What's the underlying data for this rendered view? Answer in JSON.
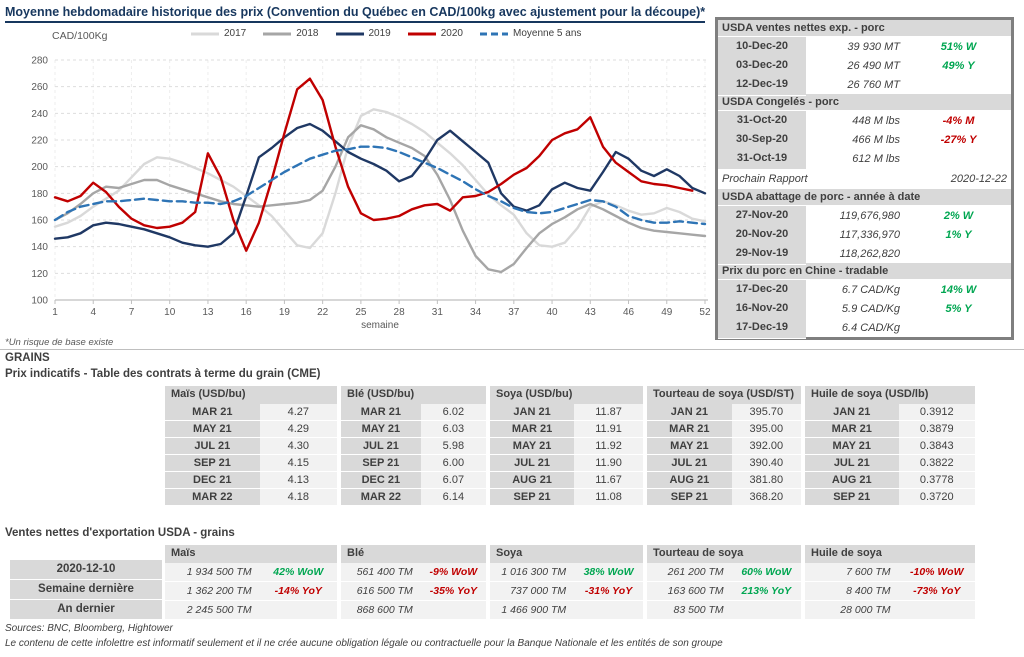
{
  "colors": {
    "title_navy": "#17375E",
    "positive": "#00A651",
    "negative": "#C00000",
    "grid": "#DDDDDD",
    "axis": "#BFBFBF",
    "header_grey": "#D9D9D9",
    "cell_grey": "#F2F2F2"
  },
  "header": {
    "title": "Moyenne hebdomadaire historique des prix (Convention du Québec en CAD/100kg avec ajustement pour la découpe)*"
  },
  "chart": {
    "y_axis_title": "CAD/100Kg",
    "x_axis_title": "semaine",
    "footnote": "*Un risque de base existe"
  },
  "chart_data": {
    "type": "line",
    "title": "Moyenne hebdomadaire historique des prix (Convention du Québec en CAD/100kg avec ajustement pour la découpe)*",
    "xlabel": "semaine",
    "ylabel": "CAD/100Kg",
    "ylim": [
      100,
      280
    ],
    "yticks": [
      280,
      260,
      240,
      220,
      200,
      180,
      160,
      140,
      120,
      100
    ],
    "xticks": [
      1,
      4,
      7,
      10,
      13,
      16,
      19,
      22,
      25,
      28,
      31,
      34,
      37,
      40,
      43,
      46,
      49,
      52
    ],
    "grid": true,
    "legend_position": "top",
    "x": [
      1,
      2,
      3,
      4,
      5,
      6,
      7,
      8,
      9,
      10,
      11,
      12,
      13,
      14,
      15,
      16,
      17,
      18,
      19,
      20,
      21,
      22,
      23,
      24,
      25,
      26,
      27,
      28,
      29,
      30,
      31,
      32,
      33,
      34,
      35,
      36,
      37,
      38,
      39,
      40,
      41,
      42,
      43,
      44,
      45,
      46,
      47,
      48,
      49,
      50,
      51,
      52
    ],
    "series": [
      {
        "name": "2017",
        "color": "#D9D9D9",
        "dashed": false,
        "values": [
          155,
          158,
          163,
          170,
          176,
          182,
          192,
          202,
          207,
          206,
          203,
          199,
          195,
          190,
          185,
          178,
          171,
          163,
          152,
          141,
          139,
          150,
          180,
          215,
          238,
          243,
          241,
          237,
          232,
          226,
          218,
          210,
          201,
          190,
          179,
          171,
          164,
          150,
          141,
          140,
          143,
          154,
          170,
          174,
          171,
          167,
          164,
          165,
          169,
          166,
          161,
          159
        ]
      },
      {
        "name": "2018",
        "color": "#A6A6A6",
        "dashed": false,
        "values": [
          160,
          165,
          172,
          180,
          185,
          184,
          187,
          190,
          190,
          186,
          183,
          180,
          177,
          174,
          172,
          171,
          170,
          171,
          172,
          173,
          175,
          182,
          200,
          222,
          231,
          228,
          222,
          218,
          214,
          208,
          194,
          175,
          152,
          133,
          123,
          121,
          127,
          139,
          150,
          157,
          162,
          168,
          172,
          168,
          163,
          158,
          154,
          152,
          151,
          150,
          149,
          148
        ]
      },
      {
        "name": "2019",
        "color": "#1F3864",
        "dashed": false,
        "values": [
          146,
          147,
          150,
          156,
          158,
          157,
          155,
          153,
          150,
          147,
          143,
          141,
          140,
          142,
          150,
          178,
          207,
          214,
          222,
          229,
          232,
          227,
          219,
          211,
          206,
          202,
          197,
          189,
          193,
          205,
          220,
          227,
          219,
          211,
          203,
          180,
          170,
          167,
          171,
          183,
          188,
          184,
          182,
          196,
          211,
          206,
          197,
          193,
          198,
          193,
          184,
          180
        ]
      },
      {
        "name": "2020",
        "color": "#C00000",
        "dashed": false,
        "values": [
          177,
          174,
          178,
          188,
          181,
          170,
          161,
          156,
          154,
          155,
          158,
          166,
          210,
          192,
          160,
          137,
          158,
          190,
          225,
          258,
          266,
          250,
          215,
          185,
          165,
          160,
          161,
          163,
          168,
          171,
          172,
          167,
          177,
          178,
          181,
          187,
          194,
          199,
          208,
          220,
          225,
          228,
          237,
          215,
          203,
          196,
          189,
          187,
          186,
          184,
          182
        ]
      },
      {
        "name": "Moyenne 5 ans",
        "color": "#2E74B5",
        "dashed": true,
        "values": [
          160,
          166,
          170,
          172,
          174,
          174,
          175,
          176,
          175,
          174,
          174,
          173,
          173,
          172,
          174,
          178,
          184,
          190,
          196,
          201,
          206,
          209,
          212,
          213,
          215,
          215,
          214,
          211,
          207,
          203,
          199,
          194,
          189,
          183,
          178,
          174,
          169,
          166,
          165,
          166,
          169,
          172,
          175,
          174,
          170,
          163,
          160,
          158,
          158,
          159,
          158,
          157
        ]
      }
    ]
  },
  "pork_panel": {
    "sections": [
      {
        "title": "USDA ventes nettes exp. - porc",
        "rows": [
          {
            "date": "10-Dec-20",
            "value": "39 930  MT",
            "change": "51% W",
            "dir": "pos"
          },
          {
            "date": "03-Dec-20",
            "value": "26 490  MT",
            "change": "49% Y",
            "dir": "pos"
          },
          {
            "date": "12-Dec-19",
            "value": "26 760  MT",
            "change": "",
            "dir": ""
          }
        ]
      },
      {
        "title": "USDA Congelés - porc",
        "rows": [
          {
            "date": "31-Oct-20",
            "value": "448 M lbs",
            "change": "-4% M",
            "dir": "neg"
          },
          {
            "date": "30-Sep-20",
            "value": "466 M lbs",
            "change": "-27% Y",
            "dir": "neg"
          },
          {
            "date": "31-Oct-19",
            "value": "612 M lbs",
            "change": "",
            "dir": ""
          }
        ]
      },
      {
        "type": "report",
        "label": "Prochain Rapport",
        "value": "2020-12-22"
      },
      {
        "title": "USDA abattage de porc - année à date",
        "rows": [
          {
            "date": "27-Nov-20",
            "value": "119,676,980",
            "change": "2% W",
            "dir": "pos"
          },
          {
            "date": "20-Nov-20",
            "value": "117,336,970",
            "change": "1% Y",
            "dir": "pos"
          },
          {
            "date": "29-Nov-19",
            "value": "118,262,820",
            "change": "",
            "dir": ""
          }
        ]
      },
      {
        "title": "Prix du porc en Chine - tradable",
        "rows": [
          {
            "date": "17-Dec-20",
            "value": "6.7 CAD/Kg",
            "change": "14% W",
            "dir": "pos"
          },
          {
            "date": "16-Nov-20",
            "value": "5.9 CAD/Kg",
            "change": "5% Y",
            "dir": "pos"
          },
          {
            "date": "17-Dec-19",
            "value": "6.4 CAD/Kg",
            "change": "",
            "dir": ""
          }
        ]
      }
    ]
  },
  "grains": {
    "heading": "GRAINS",
    "subtitle": "Prix indicatifs - Table des contrats à terme du grain (CME)",
    "groups": [
      {
        "name": "Maïs (USD/bu)",
        "rows": [
          [
            "MAR 21",
            "4.27"
          ],
          [
            "MAY 21",
            "4.29"
          ],
          [
            "JUL 21",
            "4.30"
          ],
          [
            "SEP 21",
            "4.15"
          ],
          [
            "DEC 21",
            "4.13"
          ],
          [
            "MAR 22",
            "4.18"
          ]
        ]
      },
      {
        "name": "Blé (USD/bu)",
        "rows": [
          [
            "MAR 21",
            "6.02"
          ],
          [
            "MAY 21",
            "6.03"
          ],
          [
            "JUL 21",
            "5.98"
          ],
          [
            "SEP 21",
            "6.00"
          ],
          [
            "DEC 21",
            "6.07"
          ],
          [
            "MAR 22",
            "6.14"
          ]
        ]
      },
      {
        "name": "Soya (USD/bu)",
        "rows": [
          [
            "JAN 21",
            "11.87"
          ],
          [
            "MAR 21",
            "11.91"
          ],
          [
            "MAY 21",
            "11.92"
          ],
          [
            "JUL 21",
            "11.90"
          ],
          [
            "AUG 21",
            "11.67"
          ],
          [
            "SEP 21",
            "11.08"
          ]
        ]
      },
      {
        "name": "Tourteau de soya (USD/ST)",
        "rows": [
          [
            "JAN 21",
            "395.70"
          ],
          [
            "MAR 21",
            "395.00"
          ],
          [
            "MAY 21",
            "392.00"
          ],
          [
            "JUL 21",
            "390.40"
          ],
          [
            "AUG 21",
            "381.80"
          ],
          [
            "SEP 21",
            "368.20"
          ]
        ]
      },
      {
        "name": "Huile de soya (USD/lb)",
        "rows": [
          [
            "JAN 21",
            "0.3912"
          ],
          [
            "MAR 21",
            "0.3879"
          ],
          [
            "MAY 21",
            "0.3843"
          ],
          [
            "JUL 21",
            "0.3822"
          ],
          [
            "AUG 21",
            "0.3778"
          ],
          [
            "SEP 21",
            "0.3720"
          ]
        ]
      }
    ]
  },
  "exports": {
    "title": "Ventes nettes d'exportation USDA - grains",
    "row_labels": [
      "2020-12-10",
      "Semaine dernière",
      "An dernier"
    ],
    "groups": [
      {
        "name": "Maïs",
        "cells": [
          [
            "1 934 500 TM",
            "42% WoW",
            "pos"
          ],
          [
            "1 362 200 TM",
            "-14% YoY",
            "neg"
          ],
          [
            "2 245 500 TM",
            "",
            ""
          ]
        ]
      },
      {
        "name": "Blé",
        "cells": [
          [
            "561 400 TM",
            "-9% WoW",
            "neg"
          ],
          [
            "616 500 TM",
            "-35% YoY",
            "neg"
          ],
          [
            "868 600 TM",
            "",
            ""
          ]
        ]
      },
      {
        "name": "Soya",
        "cells": [
          [
            "1 016 300 TM",
            "38% WoW",
            "pos"
          ],
          [
            "737 000 TM",
            "-31% YoY",
            "neg"
          ],
          [
            "1 466 900 TM",
            "",
            ""
          ]
        ]
      },
      {
        "name": "Tourteau de soya",
        "cells": [
          [
            "261 200 TM",
            "60% WoW",
            "pos"
          ],
          [
            "163 600 TM",
            "213% YoY",
            "pos"
          ],
          [
            "83 500 TM",
            "",
            ""
          ]
        ]
      },
      {
        "name": "Huile de soya",
        "cells": [
          [
            "7 600 TM",
            "-10% WoW",
            "neg"
          ],
          [
            "8 400 TM",
            "-73% YoY",
            "neg"
          ],
          [
            "28 000 TM",
            "",
            ""
          ]
        ]
      }
    ]
  },
  "footer": {
    "sources": "Sources: BNC, Bloomberg, Hightower",
    "disclaimer": "Le contenu de cette infolettre est informatif seulement et il ne crée aucune obligation légale ou contractuelle pour la Banque Nationale et les entités de son groupe"
  }
}
